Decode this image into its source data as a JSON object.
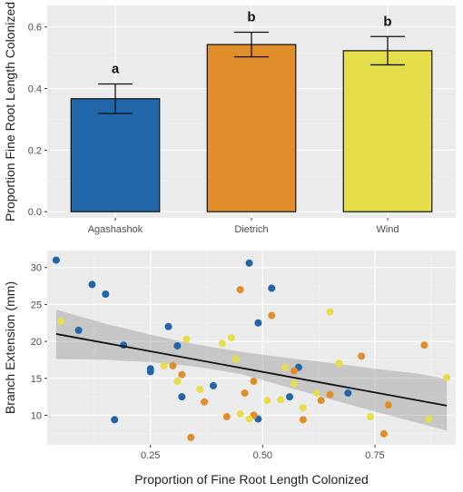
{
  "chart_data": [
    {
      "type": "bar",
      "ylabel": "Proportion Fine Root Length Colonized",
      "xlabel": "",
      "categories": [
        "Agashashok",
        "Dietrich",
        "Wind"
      ],
      "values": [
        0.367,
        0.543,
        0.523
      ],
      "error": [
        0.048,
        0.04,
        0.046
      ],
      "significance_letters": [
        "a",
        "b",
        "b"
      ],
      "colors": [
        "#2166a8",
        "#e08e2b",
        "#e6dd4a"
      ],
      "ylim": [
        -0.02,
        0.67
      ],
      "yticks": [
        0.0,
        0.2,
        0.4,
        0.6
      ],
      "ytick_labels": [
        "0.0",
        "0.2",
        "0.4",
        "0.6"
      ],
      "grid": true
    },
    {
      "type": "scatter",
      "xlabel": "Proportion of Fine Root Length Colonized",
      "ylabel": "Branch Extension (mm)",
      "xlim": [
        0.02,
        0.93
      ],
      "ylim": [
        6.0,
        32.3
      ],
      "xticks": [
        0.25,
        0.5,
        0.75
      ],
      "xtick_labels": [
        "0.25",
        "0.50",
        "0.75"
      ],
      "yticks": [
        10,
        15,
        20,
        25,
        30
      ],
      "ytick_labels": [
        "10",
        "15",
        "20",
        "25",
        "30"
      ],
      "grid": true,
      "trend_line": {
        "x": [
          0.04,
          0.91
        ],
        "y": [
          21.0,
          11.3
        ]
      },
      "confidence_band": {
        "x": [
          0.04,
          0.15,
          0.25,
          0.35,
          0.45,
          0.55,
          0.65,
          0.75,
          0.85,
          0.91
        ],
        "lower": [
          17.6,
          17.5,
          17.2,
          16.6,
          15.6,
          13.9,
          12.2,
          10.5,
          8.9,
          7.9
        ],
        "upper": [
          24.3,
          22.4,
          20.9,
          19.6,
          18.6,
          17.8,
          17.1,
          16.3,
          15.6,
          14.9
        ]
      },
      "series": [
        {
          "color": "#2166a8",
          "points": [
            [
              0.04,
              31.0
            ],
            [
              0.09,
              21.5
            ],
            [
              0.12,
              27.7
            ],
            [
              0.15,
              26.4
            ],
            [
              0.17,
              9.4
            ],
            [
              0.19,
              19.5
            ],
            [
              0.25,
              16.3
            ],
            [
              0.25,
              15.9
            ],
            [
              0.29,
              22.0
            ],
            [
              0.31,
              19.4
            ],
            [
              0.32,
              12.5
            ],
            [
              0.39,
              14.0
            ],
            [
              0.47,
              30.6
            ],
            [
              0.49,
              9.5
            ],
            [
              0.49,
              22.5
            ],
            [
              0.52,
              27.2
            ],
            [
              0.56,
              12.5
            ],
            [
              0.58,
              16.5
            ],
            [
              0.69,
              13.0
            ]
          ]
        },
        {
          "color": "#e08e2b",
          "points": [
            [
              0.3,
              16.7
            ],
            [
              0.32,
              15.5
            ],
            [
              0.34,
              7.0
            ],
            [
              0.37,
              11.8
            ],
            [
              0.42,
              9.8
            ],
            [
              0.45,
              27.0
            ],
            [
              0.46,
              13.0
            ],
            [
              0.48,
              14.6
            ],
            [
              0.48,
              10.0
            ],
            [
              0.52,
              23.5
            ],
            [
              0.57,
              16.0
            ],
            [
              0.59,
              9.4
            ],
            [
              0.63,
              12.0
            ],
            [
              0.65,
              12.8
            ],
            [
              0.72,
              18.0
            ],
            [
              0.77,
              7.5
            ],
            [
              0.78,
              11.4
            ],
            [
              0.86,
              19.5
            ]
          ]
        },
        {
          "color": "#e6dd4a",
          "points": [
            [
              0.05,
              22.7
            ],
            [
              0.28,
              16.7
            ],
            [
              0.31,
              14.6
            ],
            [
              0.33,
              20.3
            ],
            [
              0.36,
              13.5
            ],
            [
              0.41,
              19.7
            ],
            [
              0.43,
              20.5
            ],
            [
              0.44,
              17.6
            ],
            [
              0.45,
              10.2
            ],
            [
              0.47,
              9.5
            ],
            [
              0.51,
              12.0
            ],
            [
              0.54,
              12.1
            ],
            [
              0.55,
              16.5
            ],
            [
              0.57,
              14.3
            ],
            [
              0.59,
              11.0
            ],
            [
              0.62,
              13.0
            ],
            [
              0.65,
              24.0
            ],
            [
              0.67,
              17.0
            ],
            [
              0.74,
              9.8
            ],
            [
              0.87,
              9.5
            ],
            [
              0.91,
              15.1
            ]
          ]
        }
      ]
    }
  ]
}
